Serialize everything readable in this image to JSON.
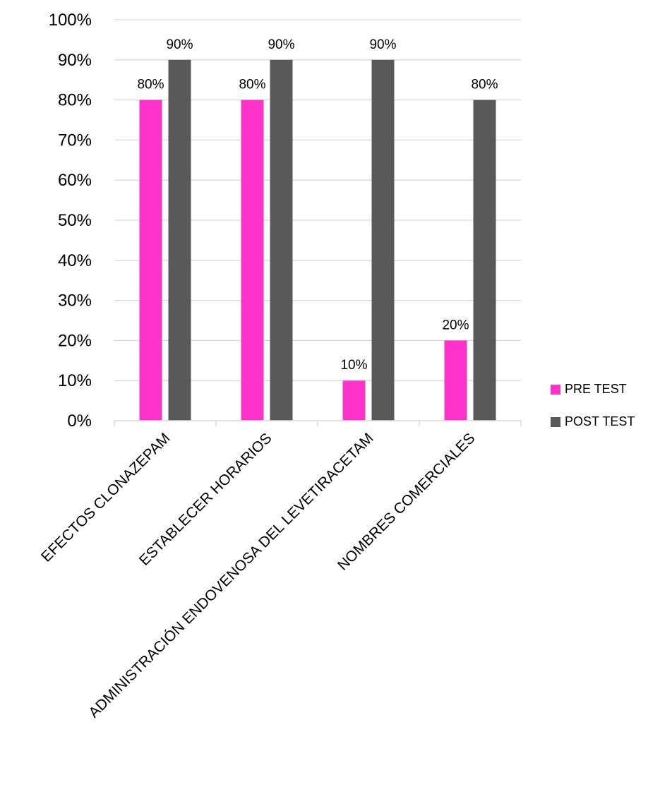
{
  "chart_data": {
    "type": "bar",
    "title": "",
    "xlabel": "",
    "ylabel": "",
    "ylim": [
      0,
      100
    ],
    "y_ticks": [
      "0%",
      "10%",
      "20%",
      "30%",
      "40%",
      "50%",
      "60%",
      "70%",
      "80%",
      "90%",
      "100%"
    ],
    "y_tick_values": [
      0,
      10,
      20,
      30,
      40,
      50,
      60,
      70,
      80,
      90,
      100
    ],
    "grid": true,
    "legend_position": "right",
    "categories": [
      "EFECTOS CLONAZEPAM",
      "ESTABLECER HORARIOS",
      "ADMINISTRACIÓN ENDOVENOSA DEL LEVETIRACETAM",
      "NOMBRES COMERCIALES"
    ],
    "series": [
      {
        "name": "PRE TEST",
        "color": "#ff33cc",
        "values": [
          80,
          80,
          10,
          20
        ],
        "labels": [
          "80%",
          "80%",
          "10%",
          "20%"
        ]
      },
      {
        "name": "POST TEST",
        "color": "#595959",
        "values": [
          90,
          90,
          90,
          80
        ],
        "labels": [
          "90%",
          "90%",
          "90%",
          "80%"
        ]
      }
    ]
  }
}
